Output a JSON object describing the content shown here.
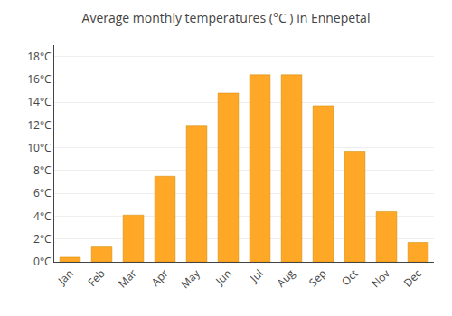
{
  "chart_data": {
    "type": "bar",
    "title": "Average monthly temperatures (°C ) in Ennepetal",
    "categories": [
      "Jan",
      "Feb",
      "Mar",
      "Apr",
      "May",
      "Jun",
      "Jul",
      "Aug",
      "Sep",
      "Oct",
      "Nov",
      "Dec"
    ],
    "values": [
      0.4,
      1.3,
      4.1,
      7.5,
      11.9,
      14.8,
      16.4,
      16.4,
      13.7,
      9.7,
      4.4,
      1.7
    ],
    "color": "#FFA726",
    "ylim": [
      0,
      19
    ],
    "yticks": [
      {
        "value": 0,
        "label": "0°C"
      },
      {
        "value": 2,
        "label": "2°C"
      },
      {
        "value": 4,
        "label": "4°C"
      },
      {
        "value": 6,
        "label": "6°C"
      },
      {
        "value": 8,
        "label": "8°C"
      },
      {
        "value": 10,
        "label": "10°C"
      },
      {
        "value": 12,
        "label": "12°C"
      },
      {
        "value": 14,
        "label": "14°C"
      },
      {
        "value": 16,
        "label": "16°C"
      },
      {
        "value": 18,
        "label": "18°C"
      }
    ],
    "grid": true
  }
}
